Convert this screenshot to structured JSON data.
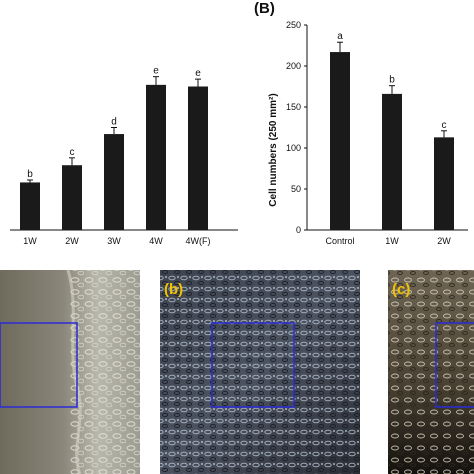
{
  "chart_data": [
    {
      "type": "bar",
      "categories": [
        "1W",
        "2W",
        "3W",
        "4W",
        "4W(F)"
      ],
      "values": [
        58,
        79,
        117,
        177,
        175
      ],
      "errors": [
        3,
        9,
        8,
        10,
        9
      ],
      "significance": [
        "b",
        "c",
        "d",
        "e",
        "e"
      ],
      "title": "",
      "xlabel": "",
      "ylabel": "",
      "bar_color": "#1a1a1a"
    },
    {
      "type": "bar",
      "panel_label": "(B)",
      "categories": [
        "Control",
        "1W",
        "2W"
      ],
      "values": [
        217,
        166,
        113
      ],
      "errors": [
        12,
        10,
        8
      ],
      "significance": [
        "a",
        "b",
        "c"
      ],
      "ylabel": "Cell numbers (250 mm²)",
      "ylim": [
        0,
        250
      ],
      "yticks": [
        0,
        50,
        100,
        150,
        200,
        250
      ],
      "bar_color": "#1a1a1a"
    }
  ],
  "micrographs": [
    {
      "label": ""
    },
    {
      "label": "(b)"
    },
    {
      "label": "(c)"
    }
  ],
  "colors": {
    "roi_box": "#2b2bd6",
    "panel_label": "#f2c200"
  }
}
